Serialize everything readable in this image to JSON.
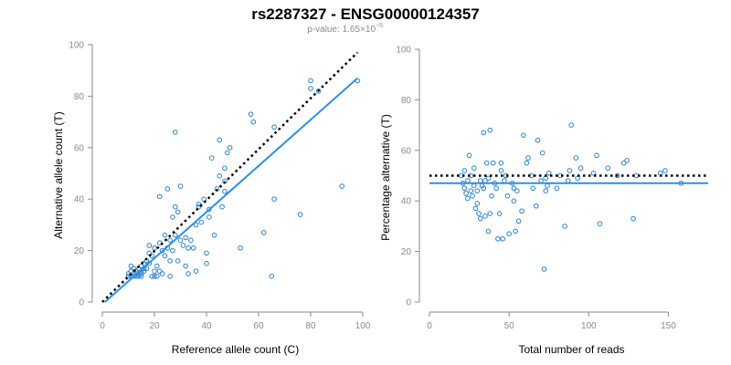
{
  "title": "rs2287327 - ENSG00000124357",
  "subtitle": {
    "prefix": "p-value: 1.65×10",
    "exponent": "−5"
  },
  "colors": {
    "points": "#2a80c8",
    "fit_line": "#2e8fe8",
    "reference_line": "#000000",
    "axis": "#8a8a8a"
  },
  "chart_data": [
    {
      "type": "scatter",
      "xlabel": "Reference allele count (C)",
      "ylabel": "Alternative allele count (T)",
      "xlim": [
        0,
        100
      ],
      "ylim": [
        0,
        100
      ],
      "xticks": [
        0,
        20,
        40,
        60,
        80,
        100
      ],
      "yticks": [
        0,
        20,
        40,
        60,
        80,
        100
      ],
      "grid": false,
      "reference_line": {
        "style": "dotted",
        "from": [
          0,
          0
        ],
        "to": [
          98,
          97
        ]
      },
      "fit_line": {
        "style": "solid",
        "from": [
          1,
          0
        ],
        "to": [
          98,
          87
        ]
      },
      "points": [
        [
          10,
          10
        ],
        [
          10,
          11
        ],
        [
          11,
          10
        ],
        [
          11,
          12
        ],
        [
          11,
          14
        ],
        [
          12,
          10
        ],
        [
          12,
          11
        ],
        [
          12,
          13
        ],
        [
          13,
          10
        ],
        [
          13,
          11
        ],
        [
          13,
          12
        ],
        [
          14,
          10
        ],
        [
          14,
          11
        ],
        [
          14,
          13
        ],
        [
          15,
          10
        ],
        [
          15,
          11
        ],
        [
          15,
          12
        ],
        [
          15,
          14
        ],
        [
          16,
          12
        ],
        [
          16,
          13
        ],
        [
          16,
          15
        ],
        [
          17,
          13
        ],
        [
          17,
          16
        ],
        [
          18,
          15
        ],
        [
          18,
          19
        ],
        [
          18,
          22
        ],
        [
          19,
          10
        ],
        [
          19,
          18
        ],
        [
          20,
          10
        ],
        [
          20,
          12
        ],
        [
          20,
          21
        ],
        [
          21,
          10
        ],
        [
          21,
          14
        ],
        [
          22,
          41
        ],
        [
          22,
          12
        ],
        [
          22,
          23
        ],
        [
          23,
          11
        ],
        [
          23,
          20
        ],
        [
          24,
          18
        ],
        [
          24,
          26
        ],
        [
          25,
          21
        ],
        [
          25,
          44
        ],
        [
          26,
          10
        ],
        [
          26,
          16
        ],
        [
          26,
          24
        ],
        [
          27,
          20
        ],
        [
          27,
          33
        ],
        [
          28,
          37
        ],
        [
          28,
          66
        ],
        [
          28,
          26
        ],
        [
          29,
          35
        ],
        [
          29,
          16
        ],
        [
          30,
          24
        ],
        [
          30,
          45
        ],
        [
          31,
          22
        ],
        [
          32,
          25
        ],
        [
          32,
          14
        ],
        [
          33,
          11
        ],
        [
          33,
          21
        ],
        [
          34,
          24
        ],
        [
          35,
          21
        ],
        [
          36,
          12
        ],
        [
          36,
          30
        ],
        [
          37,
          38
        ],
        [
          37,
          37
        ],
        [
          38,
          31
        ],
        [
          39,
          40
        ],
        [
          40,
          15
        ],
        [
          40,
          19
        ],
        [
          41,
          33
        ],
        [
          41,
          36
        ],
        [
          42,
          56
        ],
        [
          43,
          26
        ],
        [
          44,
          44
        ],
        [
          45,
          49
        ],
        [
          45,
          63
        ],
        [
          46,
          37
        ],
        [
          47,
          47
        ],
        [
          47,
          52
        ],
        [
          47,
          43
        ],
        [
          48,
          58
        ],
        [
          49,
          60
        ],
        [
          53,
          21
        ],
        [
          57,
          73
        ],
        [
          58,
          70
        ],
        [
          62,
          27
        ],
        [
          65,
          10
        ],
        [
          66,
          40
        ],
        [
          66,
          68
        ],
        [
          76,
          34
        ],
        [
          80,
          83
        ],
        [
          80,
          86
        ],
        [
          83,
          82
        ],
        [
          92,
          45
        ],
        [
          98,
          86
        ]
      ]
    },
    {
      "type": "scatter",
      "xlabel": "Total number of reads",
      "ylabel": "Percentage alternative (T)",
      "xlim": [
        0,
        175
      ],
      "ylim": [
        0,
        100
      ],
      "xticks": [
        0,
        50,
        100,
        150
      ],
      "yticks": [
        0,
        20,
        40,
        60,
        80,
        100
      ],
      "grid": false,
      "reference_line": {
        "style": "dotted",
        "y": 50
      },
      "fit_line": {
        "style": "solid",
        "y": 47
      },
      "points": [
        [
          20,
          50
        ],
        [
          21,
          47
        ],
        [
          22,
          45
        ],
        [
          22,
          52
        ],
        [
          23,
          43
        ],
        [
          24,
          48
        ],
        [
          24,
          41
        ],
        [
          25,
          58
        ],
        [
          26,
          50
        ],
        [
          26,
          44
        ],
        [
          27,
          42
        ],
        [
          28,
          46
        ],
        [
          28,
          53
        ],
        [
          29,
          37
        ],
        [
          30,
          44
        ],
        [
          30,
          39
        ],
        [
          31,
          35
        ],
        [
          32,
          48
        ],
        [
          32,
          33
        ],
        [
          33,
          46
        ],
        [
          34,
          45
        ],
        [
          34,
          67
        ],
        [
          35,
          34
        ],
        [
          35,
          48
        ],
        [
          36,
          55
        ],
        [
          37,
          28
        ],
        [
          37,
          49
        ],
        [
          38,
          68
        ],
        [
          38,
          35
        ],
        [
          39,
          42
        ],
        [
          40,
          55
        ],
        [
          41,
          47
        ],
        [
          42,
          45
        ],
        [
          43,
          25
        ],
        [
          44,
          35
        ],
        [
          45,
          55
        ],
        [
          45,
          52
        ],
        [
          46,
          25
        ],
        [
          47,
          48
        ],
        [
          48,
          50
        ],
        [
          49,
          42
        ],
        [
          50,
          27
        ],
        [
          52,
          47
        ],
        [
          53,
          45
        ],
        [
          53,
          40
        ],
        [
          54,
          28
        ],
        [
          55,
          44
        ],
        [
          56,
          32
        ],
        [
          58,
          36
        ],
        [
          59,
          66
        ],
        [
          61,
          55
        ],
        [
          62,
          57
        ],
        [
          64,
          50
        ],
        [
          65,
          45
        ],
        [
          67,
          38
        ],
        [
          68,
          64
        ],
        [
          70,
          48
        ],
        [
          71,
          59
        ],
        [
          72,
          13
        ],
        [
          73,
          49
        ],
        [
          73,
          44
        ],
        [
          74,
          46
        ],
        [
          75,
          51
        ],
        [
          80,
          45
        ],
        [
          82,
          50
        ],
        [
          85,
          30
        ],
        [
          87,
          48
        ],
        [
          88,
          52
        ],
        [
          89,
          70
        ],
        [
          92,
          57
        ],
        [
          93,
          49
        ],
        [
          95,
          53
        ],
        [
          103,
          51
        ],
        [
          105,
          58
        ],
        [
          107,
          31
        ],
        [
          112,
          53
        ],
        [
          118,
          50
        ],
        [
          122,
          55
        ],
        [
          124,
          56
        ],
        [
          128,
          33
        ],
        [
          130,
          50
        ],
        [
          145,
          51
        ],
        [
          148,
          52
        ],
        [
          158,
          47
        ]
      ]
    }
  ]
}
